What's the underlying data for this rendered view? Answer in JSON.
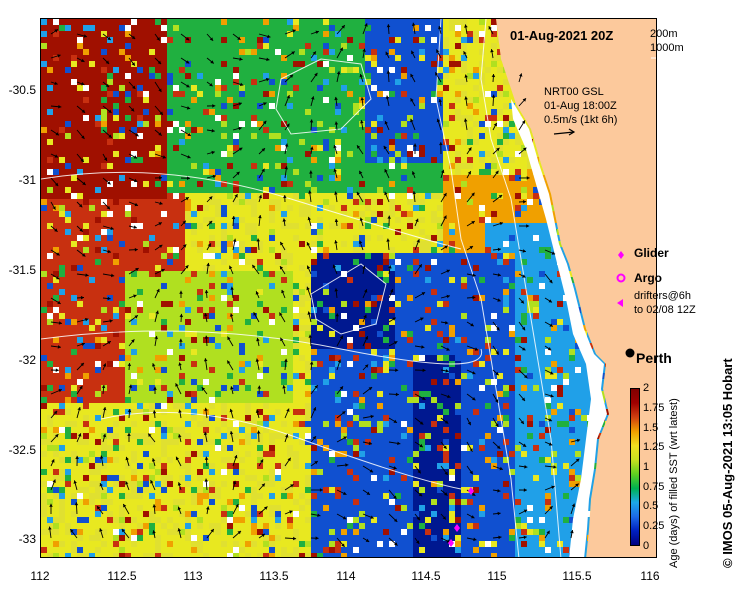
{
  "map": {
    "date": "01-Aug-2021 20Z",
    "depth_contours": [
      "200m",
      "1000m"
    ],
    "current_source": "NRT00 GSL",
    "current_time": "01-Aug 18:00Z",
    "current_scale": "0.5m/s (1kt 6h)",
    "city": "Perth",
    "extent": {
      "lon": [
        112,
        116
      ],
      "lat": [
        -33.1,
        -30.1
      ]
    }
  },
  "axes": {
    "x_ticks": [
      "112",
      "112.5",
      "113",
      "113.5",
      "114",
      "114.5",
      "115",
      "115.5",
      "116"
    ],
    "y_ticks": [
      "-30.5",
      "-31",
      "-31.5",
      "-32",
      "-32.5",
      "-33"
    ]
  },
  "legend": {
    "glider": "Glider",
    "argo": "Argo",
    "drifters_line1": "drifters@6h",
    "drifters_line2": "to 02/08 12Z"
  },
  "colorbar": {
    "title": "Age (days) of filled SST (wrt latest)",
    "ticks": [
      "0",
      "0.25",
      "0.5",
      "0.75",
      "1",
      "1.25",
      "1.5",
      "1.75",
      "2"
    ],
    "colors": [
      "#000080",
      "#0020c0",
      "#1c6ae8",
      "#1ca8e8",
      "#00b050",
      "#60d020",
      "#c8e020",
      "#f0e020",
      "#f0a000",
      "#d04010",
      "#a00000",
      "#800000"
    ]
  },
  "credit": "© IMOS 05-Aug-2021 13:05 Hobart",
  "colors": {
    "land": "#fcc99c",
    "marker": "#ff00ff",
    "contour": "#ffffff",
    "vector": "#000000"
  }
}
